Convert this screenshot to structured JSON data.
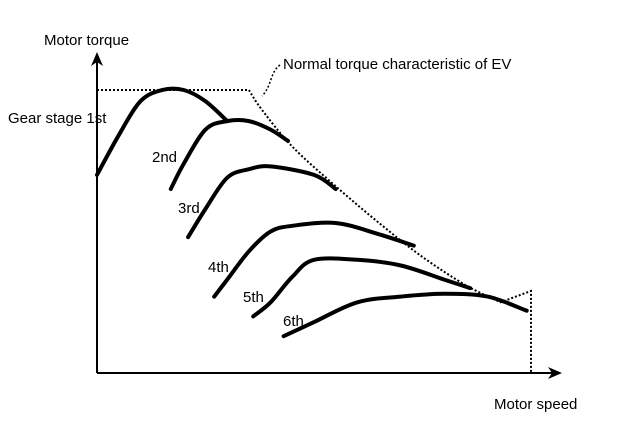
{
  "chart_data": {
    "type": "line",
    "xlabel": "Motor speed",
    "ylabel": "Motor torque",
    "xlim": [
      0,
      100
    ],
    "ylim": [
      0,
      100
    ],
    "annotation": "Normal torque characteristic of EV",
    "envelope": {
      "x": [
        0,
        35,
        38,
        45,
        55,
        65,
        75,
        85,
        93,
        100,
        100
      ],
      "y": [
        100,
        100,
        93,
        80,
        66,
        53,
        41,
        31,
        25,
        29,
        0
      ]
    },
    "series": [
      {
        "name": "Gear stage 1st",
        "x": [
          0,
          5,
          10,
          15,
          20,
          25,
          30
        ],
        "y": [
          70,
          84,
          96,
          100,
          100,
          96,
          89
        ]
      },
      {
        "name": "2nd",
        "x": [
          17,
          20,
          25,
          30,
          35,
          40,
          44
        ],
        "y": [
          65,
          74,
          86,
          89,
          89,
          86,
          82
        ]
      },
      {
        "name": "3rd",
        "x": [
          21,
          25,
          30,
          35,
          40,
          50,
          55
        ],
        "y": [
          48,
          58,
          69,
          72,
          73,
          70,
          65
        ]
      },
      {
        "name": "4th",
        "x": [
          27,
          30,
          35,
          40,
          45,
          55,
          65,
          73
        ],
        "y": [
          27,
          33,
          43,
          50,
          52,
          53,
          49,
          45
        ]
      },
      {
        "name": "5th",
        "x": [
          36,
          40,
          45,
          50,
          60,
          70,
          80,
          86
        ],
        "y": [
          20,
          25,
          34,
          40,
          40,
          38,
          33,
          30
        ]
      },
      {
        "name": "6th",
        "x": [
          43,
          50,
          60,
          70,
          80,
          90,
          99
        ],
        "y": [
          13,
          18,
          25,
          27,
          28,
          27,
          22
        ]
      }
    ],
    "labels": [
      "Gear stage 1st",
      "2nd",
      "3rd",
      "4th",
      "5th",
      "6th"
    ],
    "grid": false,
    "legend": "inline"
  }
}
